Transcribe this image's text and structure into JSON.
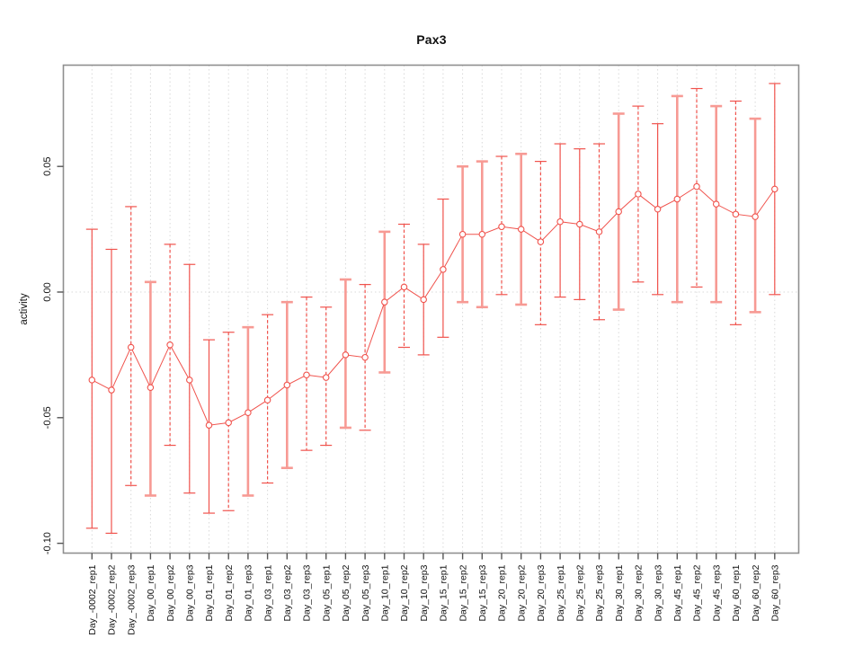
{
  "title": "Pax3",
  "chart_data": {
    "type": "scatter",
    "title": "Pax3",
    "xlabel": "",
    "ylabel": "activity",
    "ylim": [
      -0.104,
      0.091
    ],
    "yticks": [
      0.05,
      0.0,
      -0.05,
      -0.1
    ],
    "ytick_labels": [
      "0.05",
      "0.00",
      "-0.05",
      "-0.10"
    ],
    "grid": "vertical dotted gridline at every category; horizontal dotted line at y=0",
    "legend_position": "none",
    "marker": "open-circle",
    "colors": {
      "point": "#f0534d",
      "line": "#f0534d",
      "error_bar_thick": "#f79a94",
      "gridline": "#d9d9d9",
      "box": "#8f8f8f",
      "text": "#111111"
    },
    "categories": [
      "Day_-0002_rep1",
      "Day_-0002_rep2",
      "Day_-0002_rep3",
      "Day_00_rep1",
      "Day_00_rep2",
      "Day_00_rep3",
      "Day_01_rep1",
      "Day_01_rep2",
      "Day_01_rep3",
      "Day_03_rep1",
      "Day_03_rep2",
      "Day_03_rep3",
      "Day_05_rep1",
      "Day_05_rep2",
      "Day_05_rep3",
      "Day_10_rep1",
      "Day_10_rep2",
      "Day_10_rep3",
      "Day_15_rep1",
      "Day_15_rep2",
      "Day_15_rep3",
      "Day_20_rep1",
      "Day_20_rep2",
      "Day_20_rep3",
      "Day_25_rep1",
      "Day_25_rep2",
      "Day_25_rep3",
      "Day_30_rep1",
      "Day_30_rep2",
      "Day_30_rep3",
      "Day_45_rep1",
      "Day_45_rep2",
      "Day_45_rep3",
      "Day_60_rep1",
      "Day_60_rep2",
      "Day_60_rep3"
    ],
    "series": [
      {
        "name": "activity",
        "values": [
          -0.035,
          -0.039,
          -0.022,
          -0.038,
          -0.021,
          -0.035,
          -0.053,
          -0.052,
          -0.048,
          -0.043,
          -0.037,
          -0.033,
          -0.034,
          -0.025,
          -0.026,
          -0.004,
          0.002,
          -0.003,
          0.009,
          0.023,
          0.023,
          0.026,
          0.025,
          0.02,
          0.028,
          0.027,
          0.024,
          0.032,
          0.039,
          0.033,
          0.037,
          0.042,
          0.035,
          0.031,
          0.03,
          0.041
        ],
        "err_low": [
          -0.094,
          -0.096,
          -0.077,
          -0.081,
          -0.061,
          -0.08,
          -0.088,
          -0.087,
          -0.081,
          -0.076,
          -0.07,
          -0.063,
          -0.061,
          -0.054,
          -0.055,
          -0.032,
          -0.022,
          -0.025,
          -0.018,
          -0.004,
          -0.006,
          -0.001,
          -0.005,
          -0.013,
          -0.002,
          -0.003,
          -0.011,
          -0.007,
          0.004,
          -0.001,
          -0.004,
          0.002,
          -0.004,
          -0.013,
          -0.008,
          -0.001
        ],
        "err_high": [
          0.025,
          0.017,
          0.034,
          0.004,
          0.019,
          0.011,
          -0.019,
          -0.016,
          -0.014,
          -0.009,
          -0.004,
          -0.002,
          -0.006,
          0.005,
          0.003,
          0.024,
          0.027,
          0.019,
          0.037,
          0.05,
          0.052,
          0.054,
          0.055,
          0.052,
          0.059,
          0.057,
          0.059,
          0.071,
          0.074,
          0.067,
          0.078,
          0.081,
          0.074,
          0.076,
          0.069,
          0.083
        ],
        "bar_styles": [
          "solid",
          "solid",
          "dashed",
          "thick",
          "dashed",
          "solid",
          "solid",
          "dashed",
          "thick",
          "dashed",
          "thick",
          "dashed",
          "dashed",
          "thick",
          "dashed",
          "thick",
          "dashed",
          "solid",
          "solid",
          "thick",
          "thick",
          "dashed",
          "thick",
          "dashed",
          "solid",
          "solid",
          "dashed",
          "thick",
          "dashed",
          "solid",
          "thick",
          "dashed",
          "thick",
          "dashed",
          "thick",
          "solid"
        ]
      }
    ]
  }
}
